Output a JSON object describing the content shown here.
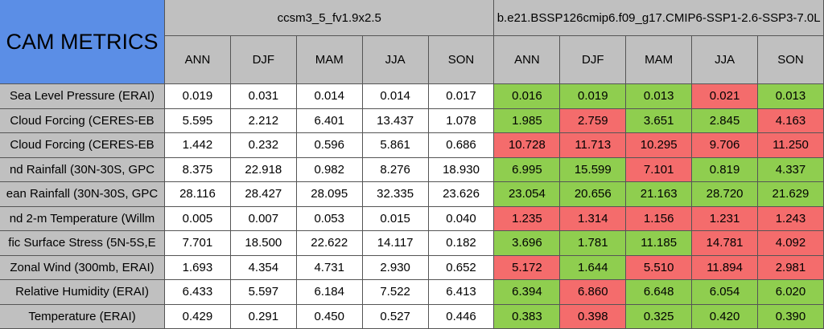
{
  "header": {
    "title": "CAM METRICS",
    "groups": [
      "ccsm3_5_fv1.9x2.5",
      "b.e21.BSSP126cmip6.f09_g17.CMIP6-SSP1-2.6-SSP3-7.0L"
    ],
    "seasons": [
      "ANN",
      "DJF",
      "MAM",
      "JJA",
      "SON",
      "ANN",
      "DJF",
      "MAM",
      "JJA",
      "SON"
    ]
  },
  "colors": {
    "header": "#c0c0c0",
    "title": "#5b8ee6",
    "base": "#ffffff",
    "good": "#8fce4f",
    "bad": "#f46c6c"
  },
  "table": {
    "rows": [
      {
        "label": "Sea Level Pressure (ERAI)",
        "values": [
          "0.019",
          "0.031",
          "0.014",
          "0.014",
          "0.017",
          "0.016",
          "0.019",
          "0.013",
          "0.021",
          "0.013"
        ],
        "status": [
          "good",
          "good",
          "good",
          "bad",
          "good"
        ]
      },
      {
        "label": "Cloud Forcing (CERES-EB",
        "values": [
          "5.595",
          "2.212",
          "6.401",
          "13.437",
          "1.078",
          "1.985",
          "2.759",
          "3.651",
          "2.845",
          "4.163"
        ],
        "status": [
          "good",
          "bad",
          "good",
          "good",
          "bad"
        ]
      },
      {
        "label": "Cloud Forcing (CERES-EB",
        "values": [
          "1.442",
          "0.232",
          "0.596",
          "5.861",
          "0.686",
          "10.728",
          "11.713",
          "10.295",
          "9.706",
          "11.250"
        ],
        "status": [
          "bad",
          "bad",
          "bad",
          "bad",
          "bad"
        ]
      },
      {
        "label": "nd Rainfall (30N-30S, GPC",
        "values": [
          "8.375",
          "22.918",
          "0.982",
          "8.276",
          "18.930",
          "6.995",
          "15.599",
          "7.101",
          "0.819",
          "4.337"
        ],
        "status": [
          "good",
          "good",
          "bad",
          "good",
          "good"
        ]
      },
      {
        "label": "ean Rainfall (30N-30S, GPC",
        "values": [
          "28.116",
          "28.427",
          "28.095",
          "32.335",
          "23.626",
          "23.054",
          "20.656",
          "21.163",
          "28.720",
          "21.629"
        ],
        "status": [
          "good",
          "good",
          "good",
          "good",
          "good"
        ]
      },
      {
        "label": "nd 2-m Temperature (Willm",
        "values": [
          "0.005",
          "0.007",
          "0.053",
          "0.015",
          "0.040",
          "1.235",
          "1.314",
          "1.156",
          "1.231",
          "1.243"
        ],
        "status": [
          "bad",
          "bad",
          "bad",
          "bad",
          "bad"
        ]
      },
      {
        "label": "fic Surface Stress (5N-5S,E",
        "values": [
          "7.701",
          "18.500",
          "22.622",
          "14.117",
          "0.182",
          "3.696",
          "1.781",
          "11.185",
          "14.781",
          "4.092"
        ],
        "status": [
          "good",
          "good",
          "good",
          "bad",
          "bad"
        ]
      },
      {
        "label": "Zonal Wind (300mb, ERAI)",
        "values": [
          "1.693",
          "4.354",
          "4.731",
          "2.930",
          "0.652",
          "5.172",
          "1.644",
          "5.510",
          "11.894",
          "2.981"
        ],
        "status": [
          "bad",
          "good",
          "bad",
          "bad",
          "bad"
        ]
      },
      {
        "label": "Relative Humidity (ERAI)",
        "values": [
          "6.433",
          "5.597",
          "6.184",
          "7.522",
          "6.413",
          "6.394",
          "6.860",
          "6.648",
          "6.054",
          "6.020"
        ],
        "status": [
          "good",
          "bad",
          "good",
          "good",
          "good"
        ]
      },
      {
        "label": "Temperature (ERAI)",
        "values": [
          "0.429",
          "0.291",
          "0.450",
          "0.527",
          "0.446",
          "0.383",
          "0.398",
          "0.325",
          "0.420",
          "0.390"
        ],
        "status": [
          "good",
          "bad",
          "good",
          "good",
          "good"
        ]
      }
    ]
  }
}
